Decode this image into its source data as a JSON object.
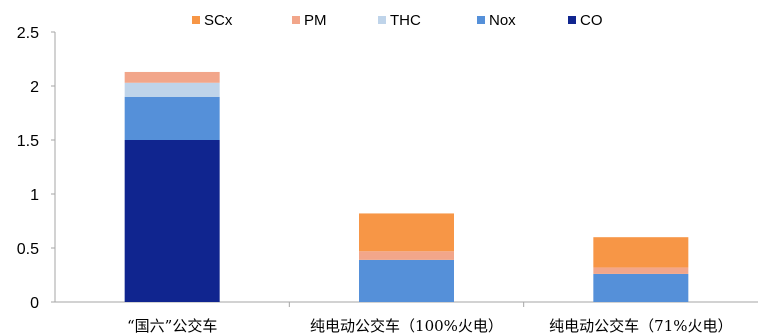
{
  "chart_data": {
    "type": "bar",
    "stacked": true,
    "categories": [
      "“国六”公交车",
      "纯电动公交车（100%火电）",
      "纯电动公交车（71%火电）"
    ],
    "series": [
      {
        "name": "CO",
        "color": "#10258F",
        "values": [
          1.5,
          0,
          0
        ]
      },
      {
        "name": "Nox",
        "color": "#5590D9",
        "values": [
          0.4,
          0.39,
          0.26
        ]
      },
      {
        "name": "THC",
        "color": "#BFD4EA",
        "values": [
          0.13,
          0,
          0
        ]
      },
      {
        "name": "PM",
        "color": "#F2A68A",
        "values": [
          0.1,
          0.08,
          0.06
        ]
      },
      {
        "name": "SCx",
        "color": "#F79646",
        "values": [
          0,
          0.35,
          0.28
        ]
      }
    ],
    "legend_order": [
      "SCx",
      "PM",
      "THC",
      "Nox",
      "CO"
    ],
    "legend_position": "top",
    "ylim": [
      0,
      2.5
    ],
    "yticks": [
      "0",
      "0.5",
      "1",
      "1.5",
      "2",
      "2.5"
    ],
    "grid": false
  }
}
